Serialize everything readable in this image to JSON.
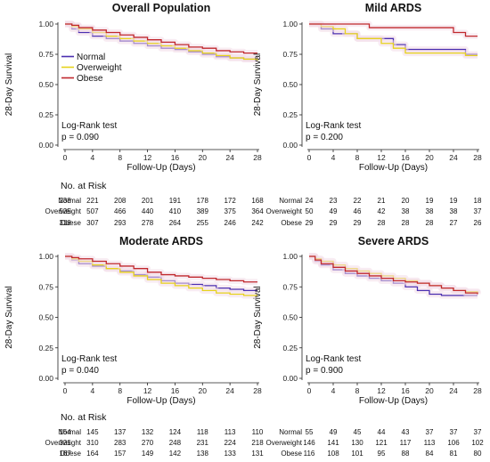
{
  "colors": {
    "Normal": "#4b2fb0",
    "Overweight": "#e6d21c",
    "Obese": "#c0282d",
    "band": "#f3dde7"
  },
  "chart_data": [
    {
      "type": "line",
      "title": "Overall Population",
      "xlabel": "Follow-Up (Days)",
      "ylabel": "28-Day Survival",
      "xlim": [
        0,
        28
      ],
      "ylim": [
        0,
        1
      ],
      "xticks": [
        "0",
        "4",
        "8",
        "12",
        "16",
        "20",
        "24",
        "28"
      ],
      "yticks": [
        "0.00",
        "0.25",
        "0.50",
        "0.75",
        "1.00"
      ],
      "grid": false,
      "legend": {
        "show": true,
        "position": "top-left",
        "entries": [
          "Normal",
          "Overweight",
          "Obese"
        ]
      },
      "annotation": [
        "Log-Rank test",
        "p = 0.090"
      ],
      "series": [
        {
          "name": "Normal",
          "x": [
            0,
            1,
            2,
            4,
            6,
            8,
            10,
            12,
            14,
            16,
            18,
            20,
            22,
            24,
            26,
            28
          ],
          "y": [
            1.0,
            0.96,
            0.93,
            0.9,
            0.88,
            0.86,
            0.84,
            0.82,
            0.8,
            0.79,
            0.77,
            0.75,
            0.73,
            0.72,
            0.71,
            0.71
          ]
        },
        {
          "name": "Overweight",
          "x": [
            0,
            1,
            2,
            4,
            6,
            8,
            10,
            12,
            14,
            16,
            18,
            20,
            22,
            24,
            26,
            28
          ],
          "y": [
            1.0,
            0.98,
            0.96,
            0.93,
            0.9,
            0.88,
            0.86,
            0.84,
            0.82,
            0.8,
            0.78,
            0.76,
            0.74,
            0.72,
            0.71,
            0.7
          ]
        },
        {
          "name": "Obese",
          "x": [
            0,
            1,
            2,
            4,
            6,
            8,
            10,
            12,
            14,
            16,
            18,
            20,
            22,
            24,
            26,
            28
          ],
          "y": [
            1.0,
            0.99,
            0.97,
            0.95,
            0.93,
            0.91,
            0.89,
            0.87,
            0.85,
            0.83,
            0.81,
            0.8,
            0.78,
            0.77,
            0.76,
            0.76
          ]
        }
      ],
      "risk_table": {
        "title": "No. at Risk",
        "times": [
          0,
          4,
          8,
          12,
          16,
          20,
          24,
          28
        ],
        "rows": [
          {
            "label": "Normal",
            "values": [
              "238",
              "221",
              "208",
              "201",
              "191",
              "178",
              "172",
              "168"
            ]
          },
          {
            "label": "Overweight",
            "values": [
              "525",
              "507",
              "466",
              "440",
              "410",
              "389",
              "375",
              "364"
            ]
          },
          {
            "label": "Obese",
            "values": [
              "318",
              "307",
              "293",
              "278",
              "264",
              "255",
              "246",
              "242"
            ]
          }
        ]
      }
    },
    {
      "type": "line",
      "title": "Mild ARDS",
      "xlabel": "Follow-Up (Days)",
      "ylabel": "28-Day Survival",
      "xlim": [
        0,
        28
      ],
      "ylim": [
        0,
        1
      ],
      "xticks": [
        "0",
        "4",
        "8",
        "12",
        "16",
        "20",
        "24",
        "28"
      ],
      "yticks": [
        "0.00",
        "0.25",
        "0.50",
        "0.75",
        "1.00"
      ],
      "grid": false,
      "annotation": [
        "Log-Rank test",
        "p = 0.200"
      ],
      "series": [
        {
          "name": "Normal",
          "x": [
            0,
            2,
            4,
            8,
            10,
            14,
            16,
            20,
            24,
            26,
            28
          ],
          "y": [
            1.0,
            0.96,
            0.92,
            0.88,
            0.88,
            0.83,
            0.79,
            0.79,
            0.79,
            0.75,
            0.75
          ]
        },
        {
          "name": "Overweight",
          "x": [
            0,
            2,
            4,
            6,
            8,
            12,
            14,
            16,
            20,
            24,
            26,
            28
          ],
          "y": [
            1.0,
            0.98,
            0.96,
            0.92,
            0.88,
            0.84,
            0.8,
            0.76,
            0.76,
            0.76,
            0.74,
            0.74
          ]
        },
        {
          "name": "Obese",
          "x": [
            0,
            8,
            10,
            18,
            20,
            24,
            26,
            28
          ],
          "y": [
            1.0,
            1.0,
            0.97,
            0.97,
            0.97,
            0.93,
            0.9,
            0.9
          ]
        }
      ],
      "risk_table": {
        "title": "",
        "times": [
          0,
          4,
          8,
          12,
          16,
          20,
          24,
          28
        ],
        "rows": [
          {
            "label": "Normal",
            "values": [
              "24",
              "23",
              "22",
              "21",
              "20",
              "19",
              "19",
              "18"
            ]
          },
          {
            "label": "Overweight",
            "values": [
              "50",
              "49",
              "46",
              "42",
              "38",
              "38",
              "38",
              "37"
            ]
          },
          {
            "label": "Obese",
            "values": [
              "29",
              "29",
              "29",
              "28",
              "28",
              "28",
              "27",
              "26"
            ]
          }
        ]
      }
    },
    {
      "type": "line",
      "title": "Moderate ARDS",
      "xlabel": "Follow-Up (Days)",
      "ylabel": "28-Day Survival",
      "xlim": [
        0,
        28
      ],
      "ylim": [
        0,
        1
      ],
      "xticks": [
        "0",
        "4",
        "8",
        "12",
        "16",
        "20",
        "24",
        "28"
      ],
      "yticks": [
        "0.00",
        "0.25",
        "0.50",
        "0.75",
        "1.00"
      ],
      "grid": false,
      "annotation": [
        "Log-Rank test",
        "p = 0.040"
      ],
      "series": [
        {
          "name": "Normal",
          "x": [
            0,
            1,
            2,
            4,
            6,
            8,
            10,
            12,
            14,
            16,
            18,
            20,
            22,
            24,
            26,
            28
          ],
          "y": [
            1.0,
            0.97,
            0.94,
            0.92,
            0.9,
            0.88,
            0.85,
            0.83,
            0.8,
            0.78,
            0.77,
            0.76,
            0.74,
            0.73,
            0.72,
            0.72
          ]
        },
        {
          "name": "Overweight",
          "x": [
            0,
            1,
            2,
            4,
            6,
            8,
            10,
            12,
            14,
            16,
            18,
            20,
            22,
            24,
            26,
            28
          ],
          "y": [
            1.0,
            0.98,
            0.96,
            0.93,
            0.9,
            0.87,
            0.84,
            0.81,
            0.78,
            0.76,
            0.74,
            0.72,
            0.7,
            0.69,
            0.68,
            0.68
          ]
        },
        {
          "name": "Obese",
          "x": [
            0,
            1,
            2,
            4,
            6,
            8,
            10,
            12,
            14,
            16,
            18,
            20,
            22,
            24,
            26,
            28
          ],
          "y": [
            1.0,
            0.99,
            0.98,
            0.96,
            0.94,
            0.92,
            0.9,
            0.87,
            0.85,
            0.84,
            0.83,
            0.82,
            0.81,
            0.8,
            0.79,
            0.79
          ]
        }
      ],
      "risk_table": {
        "title": "No. at Risk",
        "times": [
          0,
          4,
          8,
          12,
          16,
          20,
          24,
          28
        ],
        "rows": [
          {
            "label": "Normal",
            "values": [
              "154",
              "145",
              "137",
              "132",
              "124",
              "118",
              "113",
              "110"
            ]
          },
          {
            "label": "Overweight",
            "values": [
              "321",
              "310",
              "283",
              "270",
              "248",
              "231",
              "224",
              "218"
            ]
          },
          {
            "label": "Obese",
            "values": [
              "167",
              "164",
              "157",
              "149",
              "142",
              "138",
              "133",
              "131"
            ]
          }
        ]
      }
    },
    {
      "type": "line",
      "title": "Severe ARDS",
      "xlabel": "Follow-Up (Days)",
      "ylabel": "28-Day Survival",
      "xlim": [
        0,
        28
      ],
      "ylim": [
        0,
        1
      ],
      "xticks": [
        "0",
        "4",
        "8",
        "12",
        "16",
        "20",
        "24",
        "28"
      ],
      "yticks": [
        "0.00",
        "0.25",
        "0.50",
        "0.75",
        "1.00"
      ],
      "grid": false,
      "annotation": [
        "Log-Rank test",
        "p = 0.900"
      ],
      "series": [
        {
          "name": "Normal",
          "x": [
            0,
            1,
            2,
            4,
            6,
            8,
            10,
            12,
            14,
            16,
            18,
            20,
            22,
            24,
            26,
            28
          ],
          "y": [
            1.0,
            0.96,
            0.93,
            0.89,
            0.86,
            0.84,
            0.82,
            0.8,
            0.78,
            0.75,
            0.72,
            0.69,
            0.68,
            0.68,
            0.68,
            0.68
          ]
        },
        {
          "name": "Overweight",
          "x": [
            0,
            1,
            2,
            4,
            6,
            8,
            10,
            12,
            14,
            16,
            18,
            20,
            22,
            24,
            26,
            28
          ],
          "y": [
            1.0,
            0.98,
            0.96,
            0.93,
            0.9,
            0.88,
            0.86,
            0.84,
            0.82,
            0.8,
            0.78,
            0.76,
            0.74,
            0.72,
            0.71,
            0.7
          ]
        },
        {
          "name": "Obese",
          "x": [
            0,
            1,
            2,
            4,
            6,
            8,
            10,
            12,
            14,
            16,
            18,
            20,
            22,
            24,
            26,
            28
          ],
          "y": [
            1.0,
            0.97,
            0.94,
            0.91,
            0.88,
            0.86,
            0.84,
            0.82,
            0.8,
            0.79,
            0.78,
            0.76,
            0.74,
            0.72,
            0.7,
            0.69
          ]
        }
      ],
      "risk_table": {
        "title": "",
        "times": [
          0,
          4,
          8,
          12,
          16,
          20,
          24,
          28
        ],
        "rows": [
          {
            "label": "Normal",
            "values": [
              "55",
              "49",
              "45",
              "44",
              "43",
              "37",
              "37",
              "37"
            ]
          },
          {
            "label": "Overweight",
            "values": [
              "146",
              "141",
              "130",
              "121",
              "117",
              "113",
              "106",
              "102"
            ]
          },
          {
            "label": "Obese",
            "values": [
              "116",
              "108",
              "101",
              "95",
              "88",
              "84",
              "81",
              "80"
            ]
          }
        ]
      }
    }
  ]
}
